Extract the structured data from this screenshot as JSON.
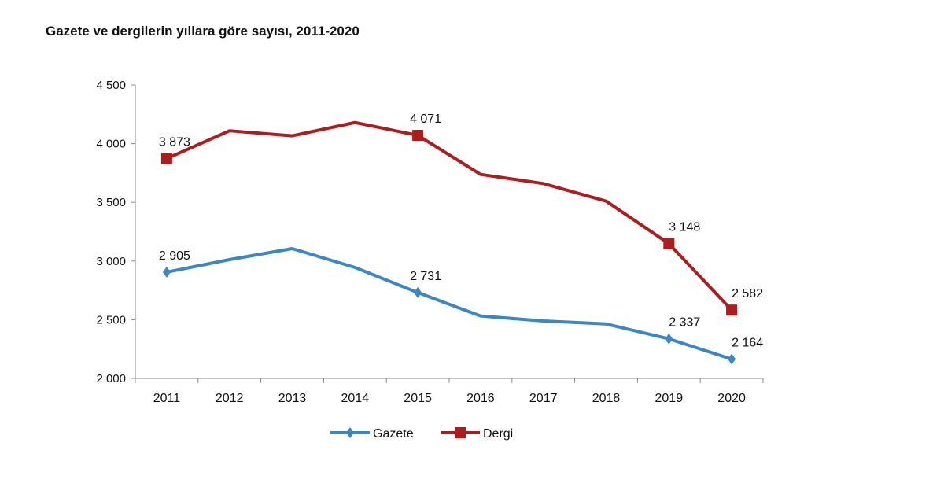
{
  "chart_data": {
    "type": "line",
    "title": "Gazete ve dergilerin yıllara göre sayısı, 2011-2020",
    "xlabel": "",
    "ylabel": "",
    "categories": [
      "2011",
      "2012",
      "2013",
      "2014",
      "2015",
      "2016",
      "2017",
      "2018",
      "2019",
      "2020"
    ],
    "ylim": [
      2000,
      4500
    ],
    "yticks": [
      2000,
      2500,
      3000,
      3500,
      4000,
      4500
    ],
    "ytick_labels": [
      "2 000",
      "2 500",
      "3 000",
      "3 500",
      "4 000",
      "4 500"
    ],
    "grid": false,
    "legend": "bottom",
    "series": [
      {
        "name": "Gazete",
        "color": "#3a87c8",
        "marker": "diamond",
        "values": [
          2905,
          3012,
          3106,
          2945,
          2731,
          2532,
          2489,
          2464,
          2337,
          2164
        ],
        "labels": {
          "0": "2 905",
          "4": "2 731",
          "8": "2 337",
          "9": "2 164"
        }
      },
      {
        "name": "Dergi",
        "color": "#b01c1c",
        "marker": "square",
        "values": [
          3873,
          4110,
          4067,
          4180,
          4071,
          3738,
          3660,
          3510,
          3148,
          2582
        ],
        "labels": {
          "0": "3 873",
          "4": "4 071",
          "8": "3 148",
          "9": "2 582"
        }
      }
    ]
  }
}
